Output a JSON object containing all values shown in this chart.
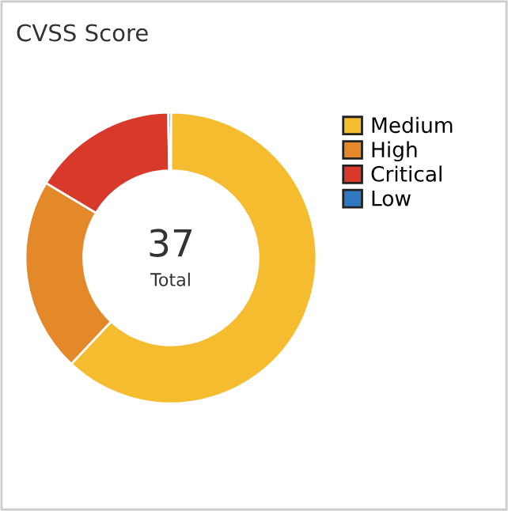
{
  "chart_data": {
    "type": "donut",
    "title": "CVSS Score",
    "categories": [
      "Medium",
      "High",
      "Critical",
      "Low"
    ],
    "values": [
      62.0,
      21.6,
      16.1,
      0.3
    ],
    "colors": [
      "#f5bc30",
      "#e4892a",
      "#d8392b",
      "#2f78bf"
    ],
    "annotations": [
      "37",
      "Total"
    ],
    "legend": "right"
  }
}
